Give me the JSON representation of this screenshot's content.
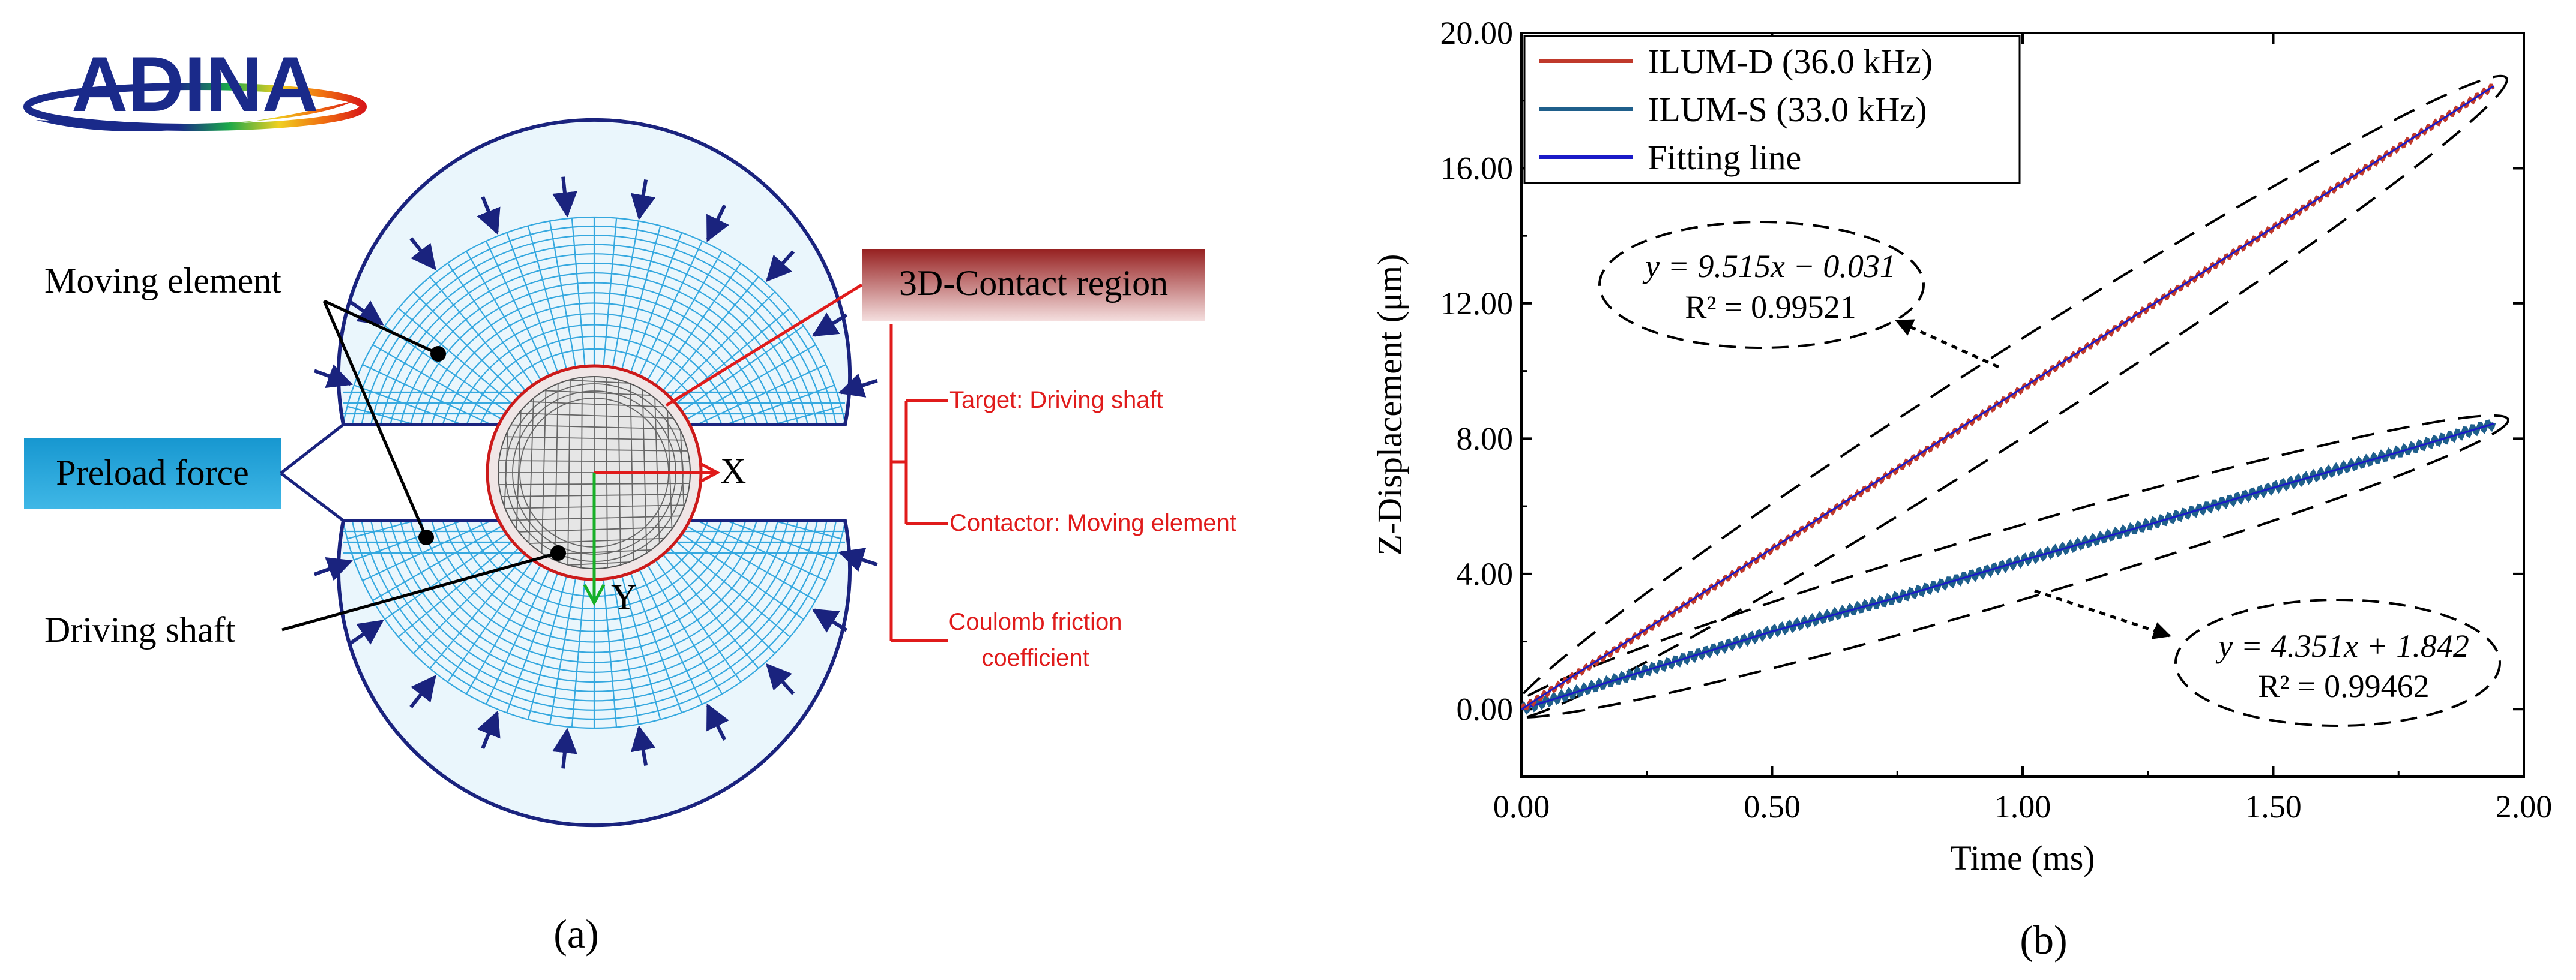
{
  "panel_a": {
    "logo_text": "ADINA",
    "labels": {
      "moving_element": "Moving element",
      "preload_force": "Preload force",
      "driving_shaft": "Driving shaft",
      "contact_region": "3D-Contact region",
      "axis_x": "X",
      "axis_y": "Y",
      "target": "Target: Driving shaft",
      "contactor": "Contactor: Moving element",
      "friction_1": "Coulomb friction",
      "friction_2": "coefficient"
    },
    "caption": "(a)",
    "colors": {
      "mesh": "#35a8df",
      "outline": "#1a237e",
      "contact": "#e01b1b",
      "preload_box": "#29a6d9",
      "x_axis": "#e01b1b",
      "y_axis": "#17b027",
      "contact_box": "#a83232"
    }
  },
  "panel_b": {
    "caption": "(b)",
    "fit_d": {
      "eq": "y = 9.515x − 0.031",
      "r2": "R² = 0.99521"
    },
    "fit_s": {
      "eq": "y = 4.351x + 1.842",
      "r2": "R² = 0.99462"
    }
  },
  "chart_data": {
    "type": "line",
    "title": "",
    "xlabel": "Time (ms)",
    "ylabel": "Z-Displacement (μm)",
    "xlim": [
      0,
      2.0
    ],
    "ylim": [
      -2.0,
      20.0
    ],
    "xticks": [
      0.0,
      0.5,
      1.0,
      1.5,
      2.0
    ],
    "xtick_labels": [
      "0.00",
      "0.50",
      "1.00",
      "1.50",
      "2.00"
    ],
    "yticks": [
      0.0,
      4.0,
      8.0,
      12.0,
      16.0,
      20.0
    ],
    "ytick_labels": [
      "0.00",
      "4.00",
      "8.00",
      "12.00",
      "16.00",
      "20.00"
    ],
    "grid": false,
    "legend_position": "top-left",
    "series": [
      {
        "name": "ILUM-D (36.0 kHz)",
        "color": "#c0392b",
        "x": [
          0.0,
          0.25,
          0.5,
          0.75,
          1.0,
          1.25,
          1.5,
          1.75,
          1.94
        ],
        "y": [
          0.0,
          2.35,
          4.73,
          7.1,
          9.48,
          11.86,
          14.24,
          16.62,
          18.43
        ]
      },
      {
        "name": "ILUM-S (33.0 kHz)",
        "color": "#1f5f8b",
        "x": [
          0.0,
          0.25,
          0.5,
          0.75,
          1.0,
          1.25,
          1.5,
          1.75,
          1.94
        ],
        "y": [
          0.0,
          1.15,
          2.3,
          3.3,
          4.4,
          5.45,
          6.55,
          7.6,
          8.44
        ]
      },
      {
        "name": "Fitting line",
        "color": "#1a1ac8",
        "x": [
          0.0,
          1.94
        ],
        "y": [
          0.0,
          18.43
        ]
      }
    ]
  }
}
